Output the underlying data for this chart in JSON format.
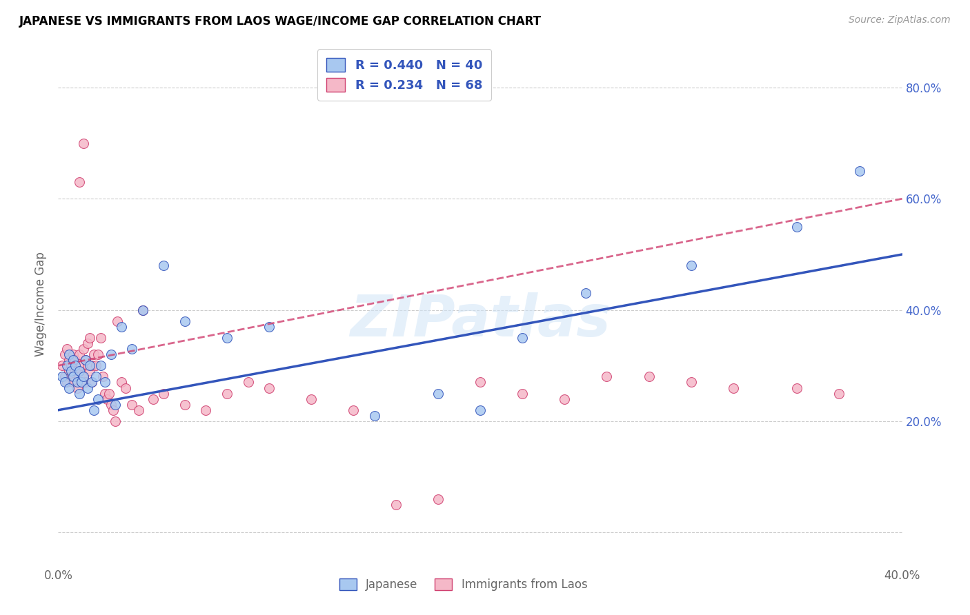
{
  "title": "JAPANESE VS IMMIGRANTS FROM LAOS WAGE/INCOME GAP CORRELATION CHART",
  "source": "Source: ZipAtlas.com",
  "ylabel": "Wage/Income Gap",
  "watermark": "ZIPatlas",
  "legend_r1": "R = 0.440",
  "legend_n1": "N = 40",
  "legend_r2": "R = 0.234",
  "legend_n2": "N = 68",
  "legend_label1": "Japanese",
  "legend_label2": "Immigrants from Laos",
  "color_japanese": "#a8c8f0",
  "color_laos": "#f5b8c8",
  "color_line_japanese": "#3355bb",
  "color_line_laos": "#d04070",
  "color_right_axis": "#4466cc",
  "color_legend_text": "#3355bb",
  "xlim": [
    0.0,
    0.4
  ],
  "ylim": [
    -0.06,
    0.88
  ],
  "yticks": [
    0.0,
    0.2,
    0.4,
    0.6,
    0.8
  ],
  "ytick_labels_right": [
    "",
    "20.0%",
    "40.0%",
    "60.0%",
    "80.0%"
  ],
  "xticks": [
    0.0,
    0.1,
    0.2,
    0.3,
    0.4
  ],
  "xtick_labels": [
    "0.0%",
    "",
    "",
    "",
    "40.0%"
  ],
  "japanese_x": [
    0.002,
    0.003,
    0.004,
    0.005,
    0.005,
    0.006,
    0.007,
    0.007,
    0.008,
    0.009,
    0.01,
    0.01,
    0.011,
    0.012,
    0.013,
    0.014,
    0.015,
    0.016,
    0.017,
    0.018,
    0.019,
    0.02,
    0.022,
    0.025,
    0.027,
    0.03,
    0.035,
    0.04,
    0.05,
    0.06,
    0.08,
    0.1,
    0.15,
    0.18,
    0.2,
    0.22,
    0.25,
    0.3,
    0.35,
    0.38
  ],
  "japanese_y": [
    0.28,
    0.27,
    0.3,
    0.26,
    0.32,
    0.29,
    0.28,
    0.31,
    0.3,
    0.27,
    0.25,
    0.29,
    0.27,
    0.28,
    0.31,
    0.26,
    0.3,
    0.27,
    0.22,
    0.28,
    0.24,
    0.3,
    0.27,
    0.32,
    0.23,
    0.37,
    0.33,
    0.4,
    0.48,
    0.38,
    0.35,
    0.37,
    0.21,
    0.25,
    0.22,
    0.35,
    0.43,
    0.48,
    0.55,
    0.65
  ],
  "laos_x": [
    0.002,
    0.003,
    0.003,
    0.004,
    0.004,
    0.005,
    0.005,
    0.006,
    0.006,
    0.007,
    0.007,
    0.008,
    0.008,
    0.009,
    0.009,
    0.01,
    0.01,
    0.011,
    0.011,
    0.012,
    0.012,
    0.013,
    0.013,
    0.014,
    0.014,
    0.015,
    0.015,
    0.016,
    0.016,
    0.017,
    0.018,
    0.019,
    0.02,
    0.021,
    0.022,
    0.023,
    0.024,
    0.025,
    0.026,
    0.027,
    0.028,
    0.03,
    0.032,
    0.035,
    0.038,
    0.04,
    0.045,
    0.05,
    0.06,
    0.07,
    0.08,
    0.09,
    0.1,
    0.12,
    0.14,
    0.16,
    0.18,
    0.2,
    0.22,
    0.24,
    0.26,
    0.28,
    0.3,
    0.32,
    0.35,
    0.37,
    0.01,
    0.012
  ],
  "laos_y": [
    0.3,
    0.28,
    0.32,
    0.27,
    0.33,
    0.29,
    0.31,
    0.28,
    0.3,
    0.27,
    0.32,
    0.29,
    0.31,
    0.26,
    0.29,
    0.28,
    0.32,
    0.27,
    0.3,
    0.28,
    0.33,
    0.27,
    0.31,
    0.3,
    0.34,
    0.29,
    0.35,
    0.3,
    0.27,
    0.32,
    0.3,
    0.32,
    0.35,
    0.28,
    0.25,
    0.24,
    0.25,
    0.23,
    0.22,
    0.2,
    0.38,
    0.27,
    0.26,
    0.23,
    0.22,
    0.4,
    0.24,
    0.25,
    0.23,
    0.22,
    0.25,
    0.27,
    0.26,
    0.24,
    0.22,
    0.05,
    0.06,
    0.27,
    0.25,
    0.24,
    0.28,
    0.28,
    0.27,
    0.26,
    0.26,
    0.25,
    0.63,
    0.7
  ],
  "trend_j_x0": 0.0,
  "trend_j_y0": 0.22,
  "trend_j_x1": 0.4,
  "trend_j_y1": 0.5,
  "trend_l_x0": 0.0,
  "trend_l_y0": 0.3,
  "trend_l_x1": 0.4,
  "trend_l_y1": 0.6
}
